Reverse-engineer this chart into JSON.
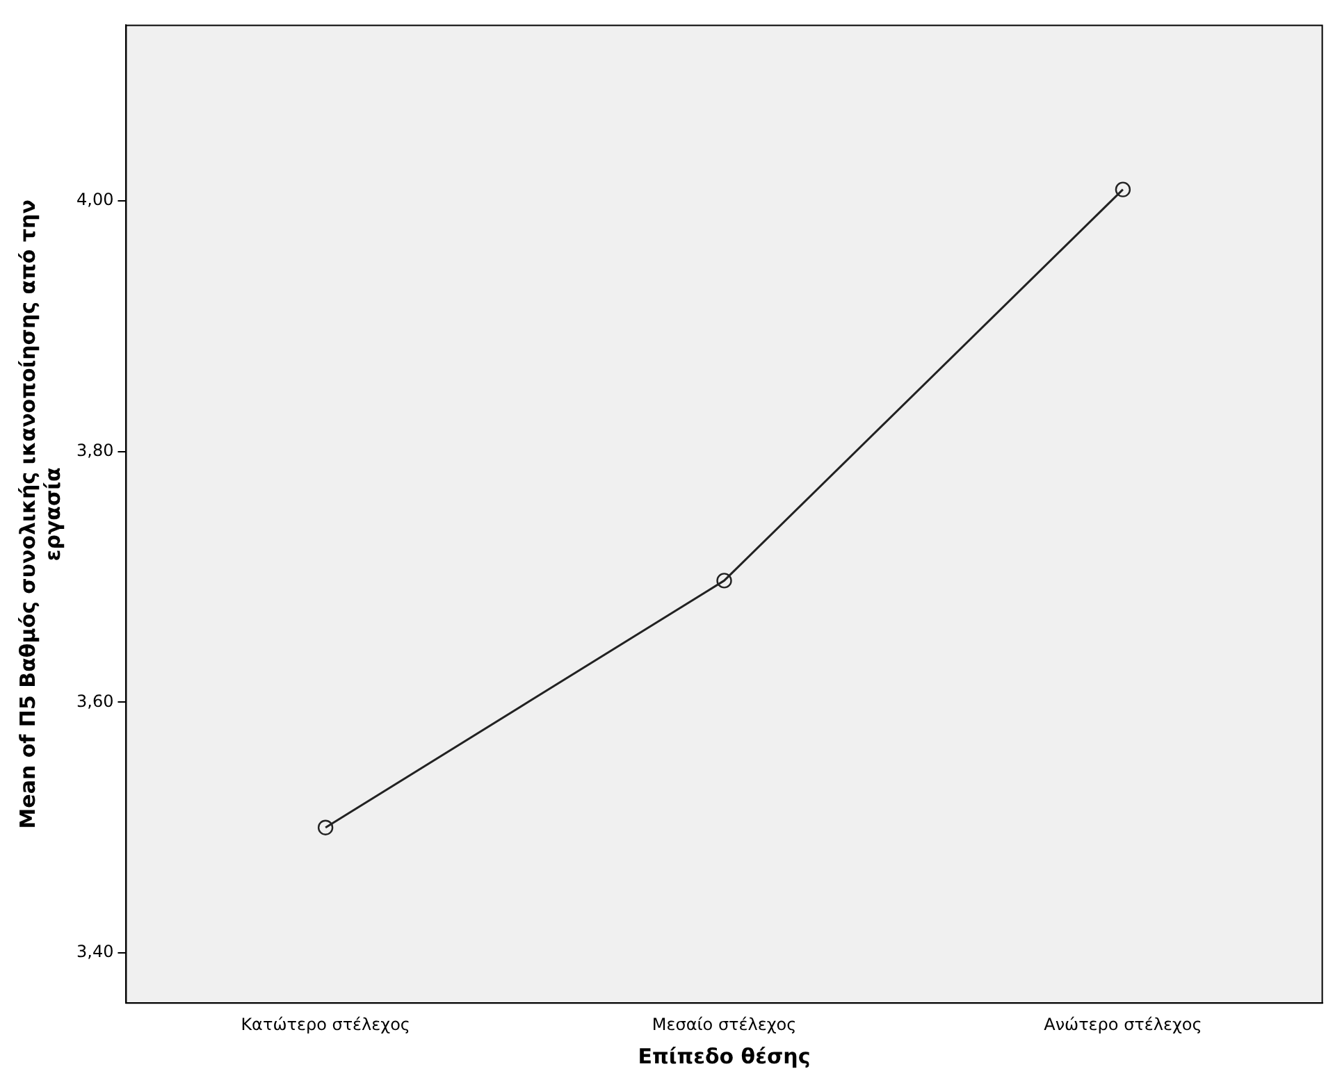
{
  "chart_data": {
    "type": "line",
    "xlabel": "Επίπεδο θέσης",
    "ylabel": "Mean of Π5 Βαθμός συνολικής ικανοποίησης από την εργασία",
    "categories": [
      "Κατώτερο στέλεχος",
      "Μεσαίο στέλεχος",
      "Ανώτερο στέλεχος"
    ],
    "series": [
      {
        "color": "#222222",
        "values": [
          3.5,
          3.697,
          4.009
        ]
      }
    ],
    "ylim": [
      3.36,
      4.14
    ],
    "yticks": [
      {
        "value": 3.4,
        "label": "3,40"
      },
      {
        "value": 3.6,
        "label": "3,60"
      },
      {
        "value": 3.8,
        "label": "3,80"
      },
      {
        "value": 4.0,
        "label": "4,00"
      }
    ],
    "grid": false,
    "legend": false,
    "marker": "circle",
    "line_style": "solid"
  }
}
